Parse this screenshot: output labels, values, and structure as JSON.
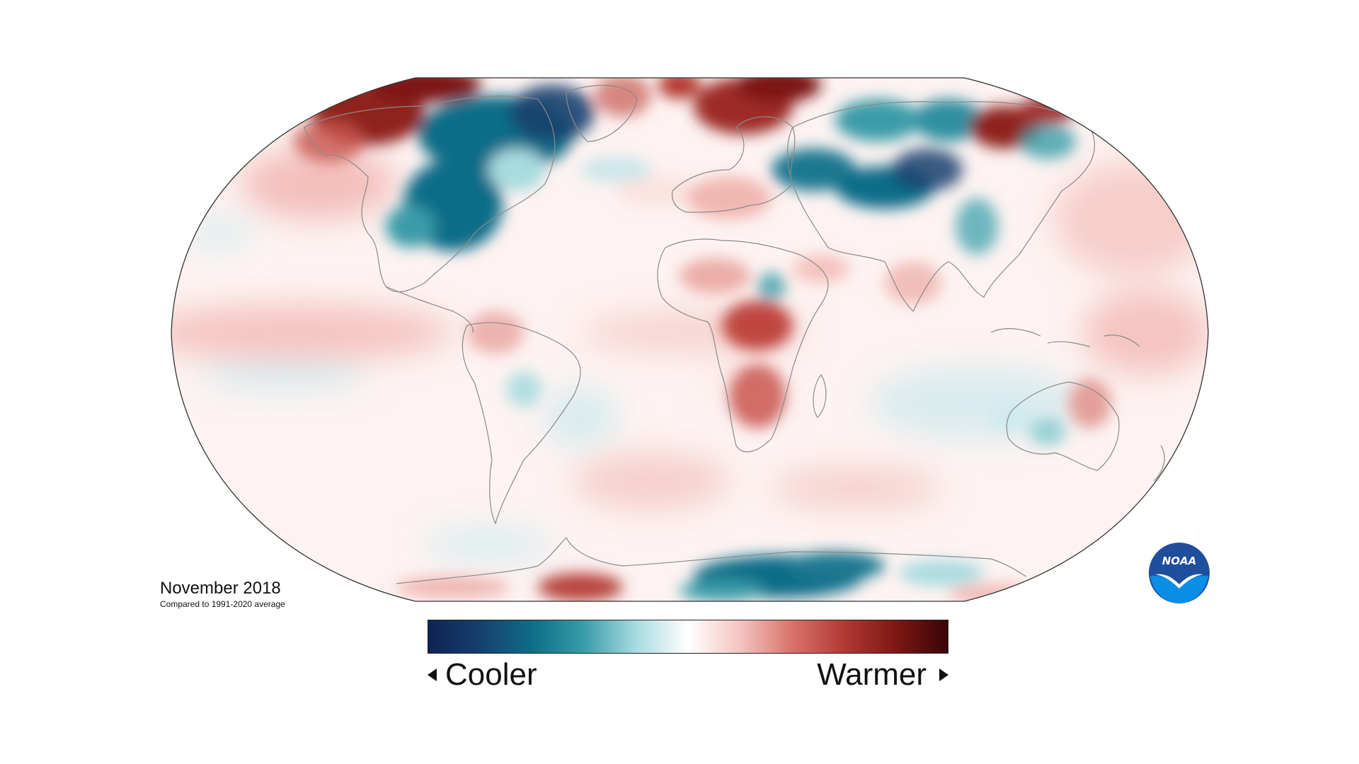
{
  "map": {
    "title": "November 2018",
    "subtitle": "Compared to 1991-2020 average",
    "projection": "robinson",
    "variable": "surface temperature anomaly",
    "legend": {
      "low_label": "Cooler",
      "high_label": "Warmer",
      "colors": [
        "#0f2355",
        "#15406e",
        "#0e6d88",
        "#3a9ca8",
        "#a8dbe0",
        "#ffffff",
        "#f4c4c0",
        "#d9736b",
        "#b23a33",
        "#7d1714",
        "#3a0506"
      ]
    },
    "anomaly_regions": [
      {
        "region": "Alaska",
        "anomaly": "warmer",
        "strength": 0.85
      },
      {
        "region": "Canada",
        "anomaly": "cooler",
        "strength": 0.95
      },
      {
        "region": "Eastern United States",
        "anomaly": "cooler",
        "strength": 0.8
      },
      {
        "region": "Greenland",
        "anomaly": "warmer",
        "strength": 0.6
      },
      {
        "region": "Scandinavia",
        "anomaly": "warmer",
        "strength": 0.85
      },
      {
        "region": "Eastern Europe and Western Russia",
        "anomaly": "cooler",
        "strength": 0.9
      },
      {
        "region": "Central Siberia",
        "anomaly": "cooler",
        "strength": 0.7
      },
      {
        "region": "Eastern Siberia",
        "anomaly": "warmer",
        "strength": 0.85
      },
      {
        "region": "East Asia",
        "anomaly": "cooler",
        "strength": 0.5
      },
      {
        "region": "Central Africa",
        "anomaly": "warmer",
        "strength": 0.65
      },
      {
        "region": "Southern Africa",
        "anomaly": "warmer",
        "strength": 0.55
      },
      {
        "region": "Australia",
        "anomaly": "warmer",
        "strength": 0.45
      },
      {
        "region": "Eastern Antarctica",
        "anomaly": "cooler",
        "strength": 0.85
      },
      {
        "region": "Central Pacific Ocean",
        "anomaly": "warmer",
        "strength": 0.45
      },
      {
        "region": "North Pacific Ocean",
        "anomaly": "warmer",
        "strength": 0.5
      }
    ]
  },
  "logo": {
    "text": "NOAA",
    "icon": "noaa-logo-icon",
    "colors": {
      "ring": "#1f4e9d",
      "fill": "#0a8ee6",
      "bird": "#ffffff"
    }
  }
}
